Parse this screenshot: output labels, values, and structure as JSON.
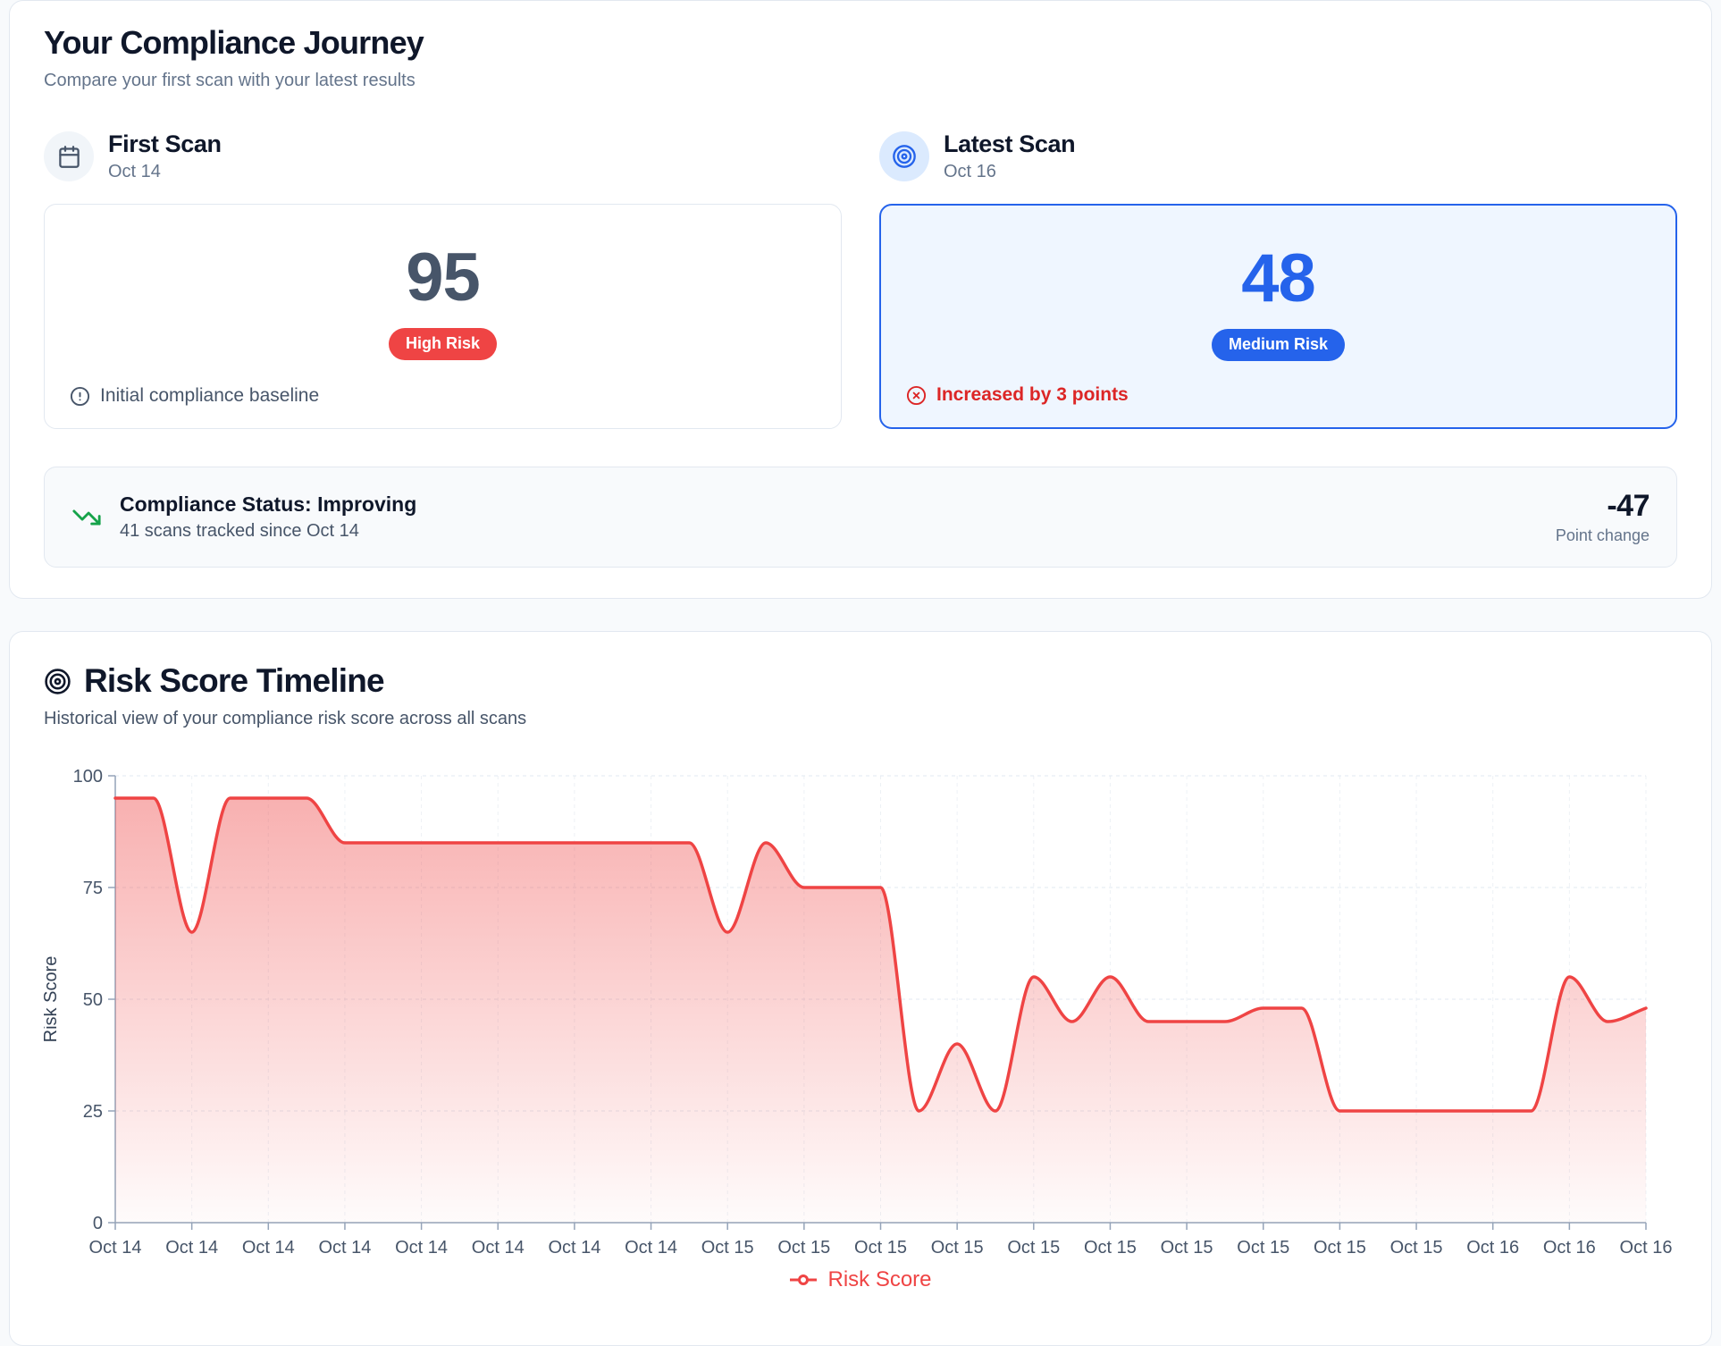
{
  "journey": {
    "title": "Your Compliance Journey",
    "subtitle": "Compare your first scan with your latest results",
    "first_scan": {
      "label": "First Scan",
      "date": "Oct 14",
      "score": "95",
      "badge": "High Risk",
      "note": "Initial compliance baseline"
    },
    "latest_scan": {
      "label": "Latest Scan",
      "date": "Oct 16",
      "score": "48",
      "badge": "Medium Risk",
      "note": "Increased by 3 points"
    },
    "status": {
      "title": "Compliance Status: Improving",
      "subtitle": "41 scans tracked since Oct 14",
      "delta": "-47",
      "delta_label": "Point change"
    }
  },
  "timeline": {
    "title": "Risk Score Timeline",
    "subtitle": "Historical view of your compliance risk score across all scans",
    "legend": "Risk Score"
  },
  "chart_data": {
    "type": "area",
    "title": "Risk Score Timeline",
    "xlabel": "",
    "ylabel": "Risk Score",
    "ylim": [
      0,
      100
    ],
    "yticks": [
      0,
      25,
      50,
      75,
      100
    ],
    "grid": true,
    "legend_position": "bottom",
    "line_color": "#ef4444",
    "x": [
      "Oct 14",
      "Oct 14",
      "Oct 14",
      "Oct 14",
      "Oct 14",
      "Oct 14",
      "Oct 14",
      "Oct 14",
      "Oct 14",
      "Oct 14",
      "Oct 14",
      "Oct 14",
      "Oct 14",
      "Oct 14",
      "Oct 14",
      "Oct 14",
      "Oct 15",
      "Oct 15",
      "Oct 15",
      "Oct 15",
      "Oct 15",
      "Oct 15",
      "Oct 15",
      "Oct 15",
      "Oct 15",
      "Oct 15",
      "Oct 15",
      "Oct 15",
      "Oct 15",
      "Oct 15",
      "Oct 15",
      "Oct 15",
      "Oct 15",
      "Oct 15",
      "Oct 15",
      "Oct 15",
      "Oct 16",
      "Oct 16",
      "Oct 16",
      "Oct 16",
      "Oct 16"
    ],
    "values": [
      95,
      95,
      65,
      95,
      95,
      95,
      85,
      85,
      85,
      85,
      85,
      85,
      85,
      85,
      85,
      85,
      65,
      85,
      75,
      75,
      75,
      25,
      40,
      25,
      55,
      45,
      55,
      45,
      45,
      45,
      48,
      48,
      25,
      25,
      25,
      25,
      25,
      25,
      55,
      45,
      48
    ]
  },
  "colors": {
    "accent_blue": "#2563eb",
    "risk_red": "#ef4444",
    "alert_red": "#dc2626",
    "improving_green": "#16a34a"
  }
}
